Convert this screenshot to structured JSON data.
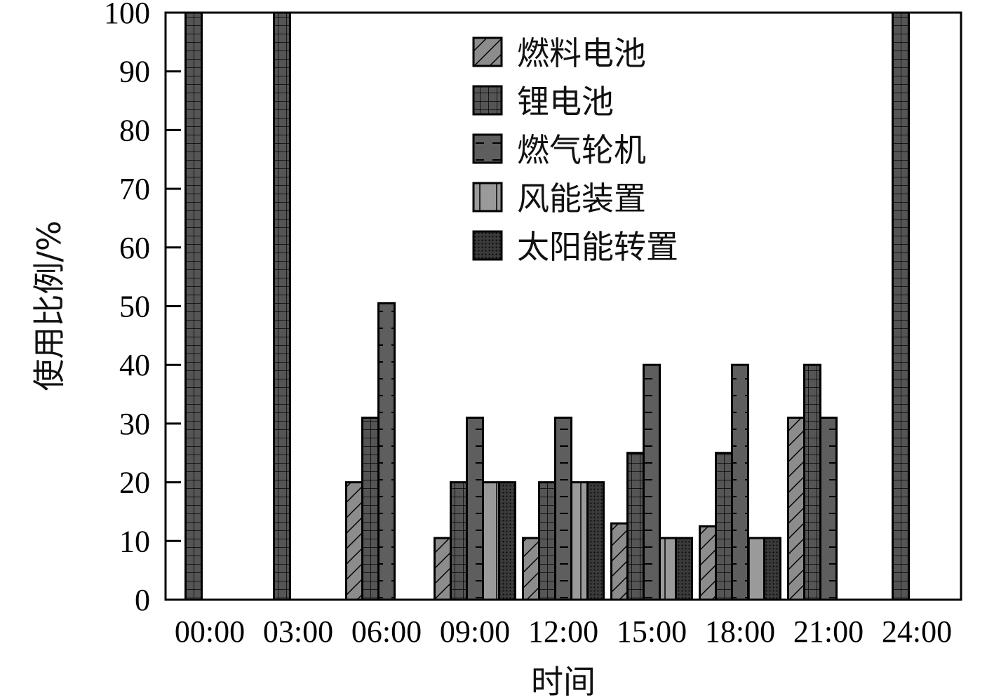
{
  "chart_data": {
    "type": "bar",
    "xlabel": "时间",
    "ylabel": "使用比例/%",
    "ylim": [
      0,
      100
    ],
    "yticks": [
      0,
      10,
      20,
      30,
      40,
      50,
      60,
      70,
      80,
      90,
      100
    ],
    "categories": [
      "00:00",
      "03:00",
      "06:00",
      "09:00",
      "12:00",
      "15:00",
      "18:00",
      "21:00",
      "24:00"
    ],
    "legend_position": "top-center",
    "series": [
      {
        "name": "燃料电池",
        "pattern": "diagonal-hatch",
        "color": "#8c8c8c",
        "values": [
          0,
          0,
          20,
          10.5,
          10.5,
          13,
          12.5,
          31,
          0
        ]
      },
      {
        "name": "锂电池",
        "pattern": "grid",
        "color": "#555555",
        "values": [
          100,
          100,
          31,
          20,
          20,
          25,
          25,
          40,
          100
        ]
      },
      {
        "name": "燃气轮机",
        "pattern": "horizontal-dash",
        "color": "#5e5e5e",
        "values": [
          0,
          0,
          50.5,
          31,
          31,
          40,
          40,
          31,
          0
        ]
      },
      {
        "name": "风能装置",
        "pattern": "vertical-line",
        "color": "#9a9a9a",
        "values": [
          0,
          0,
          0,
          20,
          20,
          10.5,
          10.5,
          0,
          0
        ]
      },
      {
        "name": "太阳能转置",
        "pattern": "dots",
        "color": "#3a3a3a",
        "values": [
          0,
          0,
          0,
          20,
          20,
          10.5,
          10.5,
          0,
          0
        ]
      }
    ]
  }
}
